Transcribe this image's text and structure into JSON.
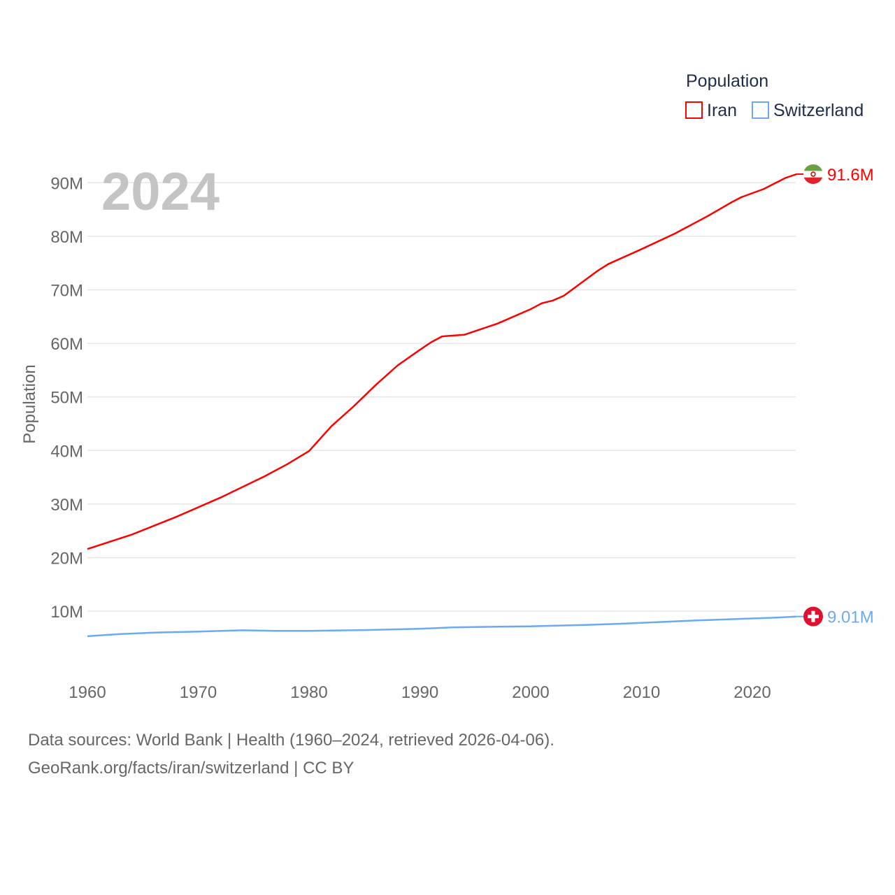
{
  "chart_data": {
    "type": "line",
    "title": "",
    "year_label": "2024",
    "xlabel": "",
    "ylabel": "Population",
    "xlim": [
      1960,
      2024
    ],
    "ylim": [
      0,
      95000000
    ],
    "x_ticks": [
      1960,
      1970,
      1980,
      1990,
      2000,
      2010,
      2020
    ],
    "y_ticks": [
      10000000,
      20000000,
      30000000,
      40000000,
      50000000,
      60000000,
      70000000,
      80000000,
      90000000
    ],
    "y_tick_labels": [
      "10M",
      "20M",
      "30M",
      "40M",
      "50M",
      "60M",
      "70M",
      "80M",
      "90M"
    ],
    "grid": true,
    "legend": {
      "title": "Population",
      "position": "top-right"
    },
    "series": [
      {
        "name": "Iran",
        "color": "#ff0000",
        "end_label": "91.6M",
        "flag": "iran-flag",
        "x": [
          1960,
          1964,
          1968,
          1972,
          1976,
          1978,
          1980,
          1982,
          1984,
          1986,
          1988,
          1990,
          1991,
          1992,
          1994,
          1997,
          2000,
          2001,
          2002,
          2003,
          2006,
          2007,
          2010,
          2013,
          2016,
          2018,
          2019,
          2021,
          2023,
          2024
        ],
        "values": [
          21.6,
          24.3,
          27.6,
          31.2,
          35.2,
          37.4,
          39.9,
          44.5,
          48.2,
          52.2,
          55.9,
          58.8,
          60.2,
          61.3,
          61.6,
          63.7,
          66.4,
          67.5,
          68.0,
          68.9,
          73.5,
          74.8,
          77.6,
          80.5,
          83.8,
          86.2,
          87.3,
          88.8,
          90.9,
          91.6
        ]
      },
      {
        "name": "Switzerland",
        "color": "#6aaaf0",
        "end_label": "9.01M",
        "flag": "switzerland-flag",
        "x": [
          1960,
          1963,
          1966,
          1970,
          1974,
          1977,
          1980,
          1985,
          1990,
          1993,
          1996,
          2000,
          2005,
          2008,
          2010,
          2015,
          2020,
          2022,
          2024
        ],
        "values": [
          5.33,
          5.75,
          6.0,
          6.19,
          6.44,
          6.33,
          6.32,
          6.47,
          6.71,
          6.99,
          7.07,
          7.18,
          7.44,
          7.65,
          7.82,
          8.28,
          8.64,
          8.78,
          9.01
        ]
      }
    ],
    "value_unit": "millions"
  },
  "footer": {
    "line1": "Data sources: World Bank | Health (1960–2024, retrieved 2026-04-06).",
    "line2": "GeoRank.org/facts/iran/switzerland | CC BY"
  }
}
